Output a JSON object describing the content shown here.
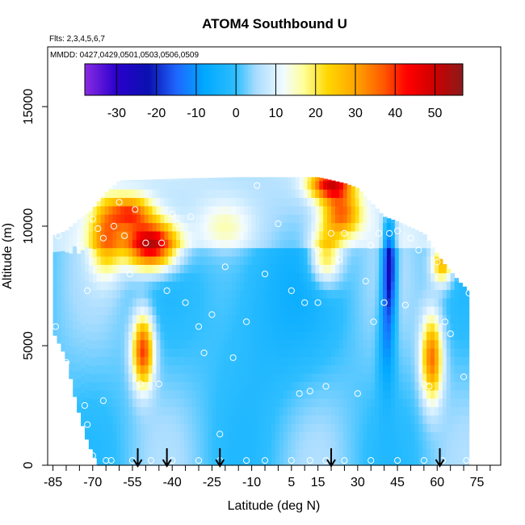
{
  "chart_data": {
    "type": "heatmap",
    "title": "ATOM4 Southbound U",
    "subtitle": "Flts: 2,3,4,5,6,7",
    "annotation": "MMDD: 0427,0429,0501,0503,0506,0509",
    "xlabel": "Latitude (deg N)",
    "ylabel": "Altitude (m)",
    "xlim": [
      -87,
      84
    ],
    "ylim": [
      0,
      17500
    ],
    "xticks": [
      -85,
      -80,
      -75,
      -70,
      -65,
      -60,
      -55,
      -50,
      -45,
      -40,
      -35,
      -30,
      -25,
      -20,
      -15,
      -10,
      -5,
      0,
      5,
      10,
      15,
      20,
      25,
      30,
      35,
      40,
      45,
      50,
      55,
      60,
      65,
      70,
      75,
      80
    ],
    "xtick_labels": [
      "-85",
      "-70",
      "-55",
      "-40",
      "-25",
      "-10",
      "5",
      "15",
      "30",
      "45",
      "60",
      "75"
    ],
    "xtick_label_values": [
      -85,
      -70,
      -55,
      -40,
      -25,
      -10,
      5,
      15,
      30,
      45,
      60,
      75
    ],
    "yticks": [
      0,
      5000,
      10000,
      15000
    ],
    "ytick_labels": [
      "0",
      "5000",
      "10000",
      "15000"
    ],
    "colorbar": {
      "range": [
        -38,
        57
      ],
      "ticks": [
        -30,
        -20,
        -10,
        0,
        10,
        20,
        30,
        40,
        50
      ],
      "tick_labels": [
        "-30",
        "-20",
        "-10",
        "0",
        "10",
        "20",
        "30",
        "40",
        "50"
      ],
      "stops": [
        {
          "v": -38,
          "c": "#8a2be2"
        },
        {
          "v": -30,
          "c": "#2a00cc"
        },
        {
          "v": -22,
          "c": "#0a10b0"
        },
        {
          "v": -15,
          "c": "#1f66ff"
        },
        {
          "v": -8,
          "c": "#00a8ff"
        },
        {
          "v": 0,
          "c": "#2ebeff"
        },
        {
          "v": 5,
          "c": "#a8dcff"
        },
        {
          "v": 12,
          "c": "#f2fbff"
        },
        {
          "v": 17,
          "c": "#ffff9a"
        },
        {
          "v": 23,
          "c": "#ffd700"
        },
        {
          "v": 30,
          "c": "#ffa500"
        },
        {
          "v": 37,
          "c": "#ff5a00"
        },
        {
          "v": 43,
          "c": "#ff0000"
        },
        {
          "v": 50,
          "c": "#cc0000"
        },
        {
          "v": 57,
          "c": "#8b1a1a"
        }
      ]
    },
    "grid": false,
    "data_region": {
      "lat_min": -85,
      "lat_max": 72,
      "bottom_alt": 0,
      "top_alt_profile": [
        [
          -85,
          9600
        ],
        [
          -83,
          9700
        ],
        [
          -80,
          9800
        ],
        [
          -75,
          10300
        ],
        [
          -70,
          10700
        ],
        [
          -66,
          11300
        ],
        [
          -60,
          11900
        ],
        [
          -35,
          12000
        ],
        [
          -15,
          12050
        ],
        [
          0,
          12050
        ],
        [
          15,
          12050
        ],
        [
          25,
          11800
        ],
        [
          30,
          11600
        ],
        [
          40,
          10400
        ],
        [
          45,
          10200
        ],
        [
          55,
          9700
        ],
        [
          62,
          8500
        ],
        [
          66,
          8000
        ],
        [
          69,
          7600
        ],
        [
          72,
          7300
        ]
      ],
      "bottom_alt_edge_cut": [
        [
          -85,
          5600
        ],
        [
          -80,
          4500
        ],
        [
          -76,
          2500
        ],
        [
          -72,
          1000
        ],
        [
          -68,
          0
        ]
      ]
    },
    "features": [
      {
        "lat": -48,
        "alt": 9200,
        "value": 50,
        "w_lat": 10,
        "w_alt": 1000
      },
      {
        "lat": -56,
        "alt": 10600,
        "value": 30,
        "w_lat": 8,
        "w_alt": 700
      },
      {
        "lat": -65,
        "alt": 9500,
        "value": 25,
        "w_lat": 6,
        "w_alt": 1500
      },
      {
        "lat": -51,
        "alt": 4800,
        "value": 40,
        "w_lat": 4,
        "w_alt": 1500
      },
      {
        "lat": 20,
        "alt": 11800,
        "value": 42,
        "w_lat": 8,
        "w_alt": 700
      },
      {
        "lat": 24,
        "alt": 10500,
        "value": 30,
        "w_lat": 7,
        "w_alt": 900
      },
      {
        "lat": 18,
        "alt": 8800,
        "value": 25,
        "w_lat": 6,
        "w_alt": 1200
      },
      {
        "lat": 58,
        "alt": 4500,
        "value": 35,
        "w_lat": 4,
        "w_alt": 1800
      },
      {
        "lat": 62,
        "alt": 8500,
        "value": 30,
        "w_lat": 4,
        "w_alt": 900
      },
      {
        "lat": 42,
        "alt": 8500,
        "value": -25,
        "w_lat": 2.5,
        "w_alt": 2200
      },
      {
        "lat": 41,
        "alt": 5500,
        "value": -12,
        "w_lat": 3,
        "w_alt": 2500
      },
      {
        "lat": -5,
        "alt": 7000,
        "value": -5,
        "w_lat": 20,
        "w_alt": 4000
      },
      {
        "lat": -20,
        "alt": 10000,
        "value": 10,
        "w_lat": 10,
        "w_alt": 1000
      }
    ],
    "obs_points": [
      [
        -83,
        9600
      ],
      [
        -84,
        5800
      ],
      [
        -80,
        4300
      ],
      [
        -75,
        9200
      ],
      [
        -72,
        7300
      ],
      [
        -70,
        10300
      ],
      [
        -67,
        11300
      ],
      [
        -68,
        9900
      ],
      [
        -66,
        9500
      ],
      [
        -62,
        10000
      ],
      [
        -60,
        11000
      ],
      [
        -58,
        9600
      ],
      [
        -56,
        8000
      ],
      [
        -54,
        10700
      ],
      [
        -50,
        9300
      ],
      [
        -44,
        9300
      ],
      [
        -42,
        7300
      ],
      [
        -40,
        10500
      ],
      [
        -38,
        10100
      ],
      [
        -35,
        6800
      ],
      [
        -33,
        10400
      ],
      [
        -30,
        5800
      ],
      [
        -28,
        4700
      ],
      [
        -25,
        6300
      ],
      [
        -20,
        8300
      ],
      [
        -17,
        4500
      ],
      [
        -12,
        6000
      ],
      [
        -8,
        11700
      ],
      [
        -5,
        8000
      ],
      [
        0,
        10100
      ],
      [
        5,
        7300
      ],
      [
        8,
        3000
      ],
      [
        10,
        6800
      ],
      [
        12,
        3100
      ],
      [
        15,
        9000
      ],
      [
        15,
        6800
      ],
      [
        18,
        3300
      ],
      [
        20,
        9700
      ],
      [
        23,
        8600
      ],
      [
        25,
        9700
      ],
      [
        30,
        3000
      ],
      [
        33,
        7700
      ],
      [
        35,
        9200
      ],
      [
        36,
        6000
      ],
      [
        38,
        9700
      ],
      [
        40,
        6800
      ],
      [
        42,
        9700
      ],
      [
        45,
        9800
      ],
      [
        48,
        6700
      ],
      [
        50,
        9500
      ],
      [
        53,
        9000
      ],
      [
        55,
        3400
      ],
      [
        57,
        3300
      ],
      [
        60,
        8500
      ],
      [
        63,
        6000
      ],
      [
        65,
        5500
      ],
      [
        70,
        3700
      ],
      [
        72,
        7200
      ],
      [
        -72,
        1700
      ],
      [
        -73,
        2500
      ],
      [
        -66,
        2700
      ],
      [
        -52,
        3400
      ],
      [
        -45,
        3400
      ],
      [
        -22,
        1300
      ],
      [
        -65,
        200
      ],
      [
        -63,
        200
      ],
      [
        -55,
        200
      ],
      [
        -48,
        200
      ],
      [
        -40,
        200
      ],
      [
        -30,
        200
      ],
      [
        -22,
        200
      ],
      [
        -12,
        200
      ],
      [
        -5,
        200
      ],
      [
        5,
        200
      ],
      [
        12,
        200
      ],
      [
        18,
        200
      ],
      [
        25,
        200
      ],
      [
        35,
        200
      ],
      [
        45,
        200
      ],
      [
        55,
        200
      ],
      [
        62,
        200
      ],
      [
        71,
        200
      ],
      [
        -74,
        300
      ],
      [
        -70,
        400
      ]
    ],
    "arrows_lat": [
      -53,
      -42,
      -22,
      20,
      61
    ]
  }
}
